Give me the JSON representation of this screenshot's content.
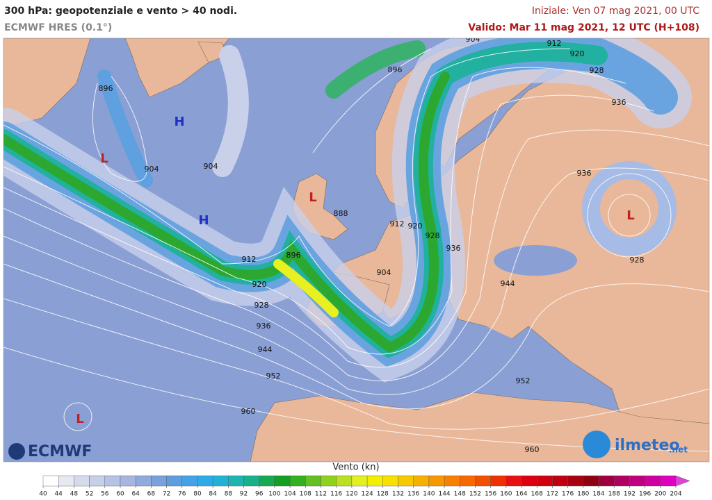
{
  "header": {
    "title": "300 hPa: geopotenziale e vento > 40 nodi.",
    "subtitle": "ECMWF HRES (0.1°)",
    "initial": "Iniziale: Ven 07 mag 2021, 00 UTC",
    "valid": "Valido: Mar 11 mag 2021, 12 UTC (H+108)"
  },
  "map": {
    "contour_labels": [
      896,
      904,
      904,
      888,
      912,
      896,
      920,
      928,
      936,
      944,
      952,
      960,
      896,
      904,
      912,
      920,
      928,
      936,
      936,
      912,
      920,
      928,
      936,
      904,
      944,
      928,
      952,
      960
    ],
    "pressure_centers": [
      "H",
      "H",
      "L",
      "L",
      "L",
      "L"
    ]
  },
  "logos": {
    "left": "ECMWF",
    "right": "ilmeteo",
    "right_suffix": ".net"
  },
  "colorbar": {
    "title": "Vento (kn)",
    "ticks": [
      40,
      44,
      48,
      52,
      56,
      60,
      64,
      68,
      72,
      76,
      80,
      84,
      88,
      92,
      96,
      100,
      104,
      108,
      112,
      116,
      120,
      124,
      128,
      132,
      136,
      140,
      144,
      148,
      152,
      156,
      160,
      164,
      168,
      172,
      176,
      180,
      184,
      188,
      192,
      196,
      200,
      204
    ],
    "colors": [
      "#ffffff",
      "#e8e8f2",
      "#d6daec",
      "#c6cee8",
      "#b6c2e4",
      "#a6b6e0",
      "#90aade",
      "#78a2dc",
      "#5e9ee0",
      "#44a2e6",
      "#2eaaea",
      "#22b2d6",
      "#1eb4b2",
      "#1ab08a",
      "#16a852",
      "#12a022",
      "#32b020",
      "#62c020",
      "#92d020",
      "#bae020",
      "#e2f020",
      "#f2f000",
      "#f8e000",
      "#f8c800",
      "#f8b000",
      "#f89800",
      "#f88000",
      "#f86800",
      "#f05000",
      "#f03000",
      "#e81010",
      "#de0010",
      "#d00010",
      "#c00010",
      "#a80010",
      "#900010",
      "#a00040",
      "#b00060",
      "#c00080",
      "#d000a0",
      "#e000c0",
      "#e040d8"
    ]
  }
}
